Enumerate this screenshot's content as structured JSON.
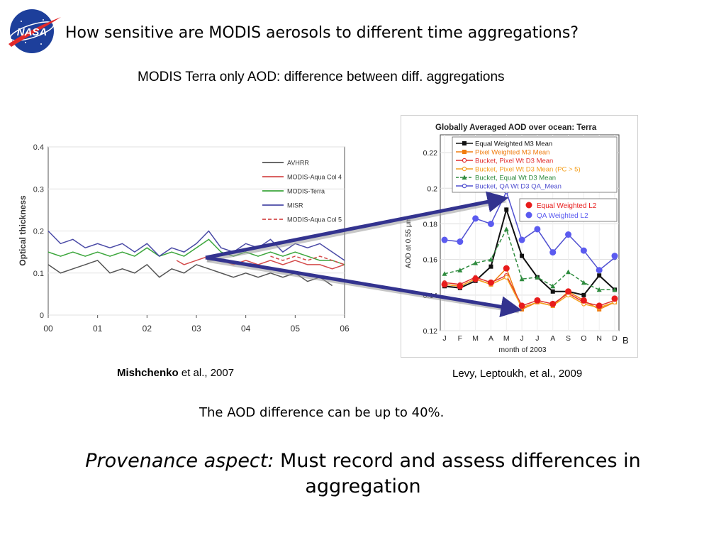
{
  "slide": {
    "title": "How sensitive are MODIS aerosols to different time aggregations?",
    "subtitle": "MODIS Terra only AOD: difference between diff. aggregations",
    "caption_left_author": "Mishchenko",
    "caption_left_rest": " et al., 2007",
    "caption_right": "Levy, Leptoukh, et al., 2009",
    "difference_note": "The AOD difference can be up to 40%.",
    "provenance_label": "Provenance aspect:",
    "provenance_text": " Must record and assess differences in aggregation",
    "logo_text": "NASA",
    "colors": {
      "nasa_blue": "#1d3f9b",
      "nasa_red": "#e22a2a",
      "arrow": "#33338f"
    }
  },
  "chart_data": [
    {
      "type": "line",
      "title": "",
      "xlabel": "",
      "ylabel": "Optical thickness",
      "x_ticks": [
        "00",
        "01",
        "02",
        "03",
        "04",
        "05",
        "06"
      ],
      "y_ticks": [
        "0",
        "0.1",
        "0.2",
        "0.3",
        "0.4"
      ],
      "xlim": [
        0,
        6
      ],
      "ylim": [
        0,
        0.4
      ],
      "legend_position": "top-right",
      "series": [
        {
          "name": "AVHRR",
          "color": "#555555",
          "x": [
            0,
            0.25,
            0.5,
            0.75,
            1,
            1.25,
            1.5,
            1.75,
            2,
            2.25,
            2.5,
            2.75,
            3,
            3.25,
            3.5,
            3.75,
            4,
            4.25,
            4.5,
            4.75,
            5,
            5.25,
            5.5,
            5.75
          ],
          "values": [
            0.12,
            0.1,
            0.11,
            0.12,
            0.13,
            0.1,
            0.11,
            0.1,
            0.12,
            0.09,
            0.11,
            0.1,
            0.12,
            0.11,
            0.1,
            0.09,
            0.1,
            0.09,
            0.1,
            0.09,
            0.1,
            0.08,
            0.09,
            0.07
          ]
        },
        {
          "name": "MODIS-Aqua Col 4",
          "color": "#d44b4b",
          "x": [
            2.6,
            2.75,
            3,
            3.25,
            3.5,
            3.75,
            4,
            4.25,
            4.5,
            4.75,
            5,
            5.25,
            5.5,
            5.75,
            6
          ],
          "values": [
            0.13,
            0.12,
            0.13,
            0.14,
            0.13,
            0.12,
            0.13,
            0.12,
            0.13,
            0.12,
            0.13,
            0.12,
            0.12,
            0.11,
            0.12
          ]
        },
        {
          "name": "MODIS-Terra",
          "color": "#3ca63c",
          "x": [
            0,
            0.25,
            0.5,
            0.75,
            1,
            1.25,
            1.5,
            1.75,
            2,
            2.25,
            2.5,
            2.75,
            3,
            3.25,
            3.5,
            3.75,
            4,
            4.25,
            4.5,
            4.75,
            5,
            5.25,
            5.5,
            5.75,
            6
          ],
          "values": [
            0.15,
            0.14,
            0.15,
            0.14,
            0.15,
            0.14,
            0.15,
            0.14,
            0.16,
            0.14,
            0.15,
            0.14,
            0.16,
            0.18,
            0.15,
            0.14,
            0.15,
            0.14,
            0.15,
            0.14,
            0.15,
            0.14,
            0.13,
            0.13,
            0.12
          ]
        },
        {
          "name": "MISR",
          "color": "#4a4aa6",
          "x": [
            0,
            0.25,
            0.5,
            0.75,
            1,
            1.25,
            1.5,
            1.75,
            2,
            2.25,
            2.5,
            2.75,
            3,
            3.25,
            3.5,
            3.75,
            4,
            4.25,
            4.5,
            4.75,
            5,
            5.25,
            5.5,
            5.75,
            6
          ],
          "values": [
            0.2,
            0.17,
            0.18,
            0.16,
            0.17,
            0.16,
            0.17,
            0.15,
            0.17,
            0.14,
            0.16,
            0.15,
            0.17,
            0.2,
            0.16,
            0.15,
            0.17,
            0.16,
            0.18,
            0.15,
            0.17,
            0.16,
            0.17,
            0.15,
            0.13
          ]
        },
        {
          "name": "MODIS-Aqua Col 5",
          "color": "#d44b4b",
          "dash": true,
          "x": [
            4.5,
            4.75,
            5,
            5.25,
            5.5,
            5.75,
            6
          ],
          "values": [
            0.14,
            0.13,
            0.14,
            0.13,
            0.14,
            0.13,
            0.12
          ]
        }
      ]
    },
    {
      "type": "line",
      "title": "Globally Averaged AOD over ocean: Terra",
      "xlabel": "month of 2003",
      "ylabel": "AOD at 0.55 μm",
      "categories": [
        "J",
        "F",
        "M",
        "A",
        "M",
        "J",
        "J",
        "A",
        "S",
        "O",
        "N",
        "D"
      ],
      "y_ticks": [
        "0.12",
        "0.14",
        "0.16",
        "0.18",
        "0.2",
        "0.22"
      ],
      "ylim": [
        0.12,
        0.23
      ],
      "corner_label": "B",
      "legend_position": "top",
      "series": [
        {
          "name": "Equal Weighted M3 Mean",
          "color": "#111111",
          "marker": "square",
          "values": [
            0.145,
            0.144,
            0.148,
            0.156,
            0.188,
            0.162,
            0.15,
            0.142,
            0.142,
            0.14,
            0.151,
            0.143
          ]
        },
        {
          "name": "Pixel Weighted M3 Mean",
          "color": "#f07d10",
          "marker": "square",
          "values": [
            0.146,
            0.145,
            0.149,
            0.146,
            0.155,
            0.132,
            0.136,
            0.134,
            0.142,
            0.137,
            0.132,
            0.136
          ]
        },
        {
          "name": "Bucket, Pixel Wt D3 Mean",
          "color": "#e03030",
          "marker": "circle-open",
          "values": [
            0.147,
            0.146,
            0.15,
            0.147,
            0.151,
            0.134,
            0.137,
            0.135,
            0.141,
            0.136,
            0.134,
            0.137
          ]
        },
        {
          "name": "Bucket, Pixel Wt D3 Mean (PC > 5)",
          "color": "#f4a020",
          "marker": "circle-open",
          "values": [
            0.146,
            0.145,
            0.149,
            0.146,
            0.15,
            0.133,
            0.136,
            0.134,
            0.14,
            0.135,
            0.133,
            0.136
          ]
        },
        {
          "name": "Bucket, Equal Wt D3 Mean",
          "color": "#2e8b3e",
          "marker": "triangle",
          "dash": true,
          "values": [
            0.152,
            0.154,
            0.158,
            0.16,
            0.177,
            0.149,
            0.15,
            0.145,
            0.153,
            0.147,
            0.143,
            0.143
          ]
        },
        {
          "name": "Bucket, QA Wt D3 QA_Mean",
          "color": "#5050d0",
          "marker": "circle-open",
          "values": [
            0.171,
            0.17,
            0.183,
            0.18,
            0.198,
            0.171,
            0.177,
            0.164,
            0.174,
            0.165,
            0.154,
            0.161
          ]
        },
        {
          "name": "Equal Weighted L2",
          "color": "#e81c1c",
          "marker": "dot",
          "values": [
            0.146,
            0.145,
            0.149,
            0.147,
            0.155,
            0.134,
            0.137,
            0.135,
            0.142,
            0.137,
            0.134,
            0.138
          ]
        },
        {
          "name": "QA Weighted L2",
          "color": "#5b5bf0",
          "marker": "dot",
          "values": [
            0.171,
            0.17,
            0.183,
            0.18,
            0.2,
            0.171,
            0.177,
            0.164,
            0.174,
            0.165,
            0.154,
            0.162
          ]
        }
      ]
    }
  ]
}
